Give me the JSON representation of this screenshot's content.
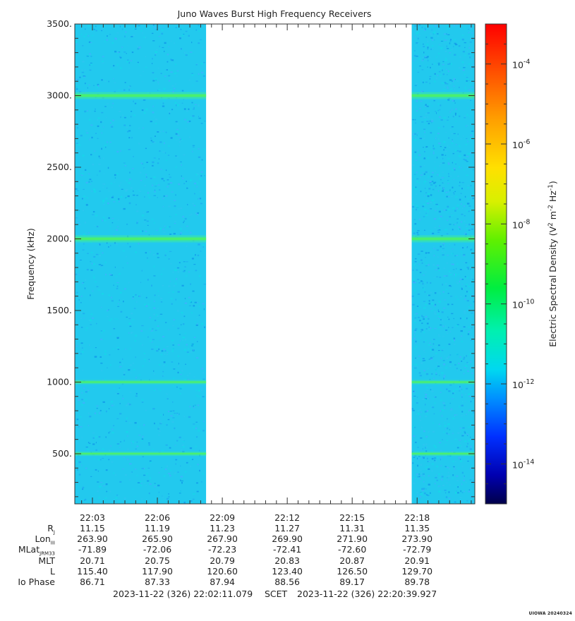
{
  "chart_data": {
    "type": "heatmap",
    "title": "Juno Waves Burst High Frequency Receivers",
    "ylabel": "Frequency (kHz)",
    "ylim": [
      150,
      3500
    ],
    "yticks": [
      "3500.",
      "3000.",
      "2500.",
      "2000.",
      "1500.",
      "1000.",
      "500."
    ],
    "ytick_values": [
      3500,
      3000,
      2500,
      2000,
      1500,
      1000,
      500
    ],
    "xticks": [
      "22:03",
      "22:06",
      "22:09",
      "22:12",
      "22:15",
      "22:18"
    ],
    "time_range": [
      "22:02:11.079",
      "22:20:39.927"
    ],
    "data_segments": [
      {
        "start": "22:02:11",
        "end": "22:08:15"
      },
      {
        "start": "22:17:45",
        "end": "22:20:39"
      }
    ],
    "emission_lines_khz": [
      3000,
      2000,
      1000,
      500
    ],
    "background_level": "10^-12",
    "colorbar": {
      "label": "Electric Spectral Density (V2 m-2 Hz-1)",
      "label_parts": {
        "base": "Electric Spectral Density (V",
        "exp1": "2",
        "mid": " m",
        "exp2": "-2",
        "mid2": " Hz",
        "exp3": "-1",
        "end": ")"
      },
      "scale": "log",
      "range_exponents": [
        -15,
        -3
      ],
      "tick_exponents": [
        -4,
        -6,
        -8,
        -10,
        -12,
        -14
      ],
      "colors": [
        "#00008b",
        "#0000ff",
        "#0080ff",
        "#00e6e6",
        "#00ff80",
        "#00ff00",
        "#b3ff00",
        "#ffff00",
        "#ffa500",
        "#ff4000",
        "#ff0000"
      ]
    }
  },
  "ephemeris": {
    "rows": [
      {
        "label": "Rj",
        "label_main": "R",
        "label_sub": "J",
        "values": [
          "11.15",
          "11.19",
          "11.23",
          "11.27",
          "11.31",
          "11.35"
        ]
      },
      {
        "label": "LonIII",
        "label_main": "Lon",
        "label_sub": "III",
        "values": [
          "263.90",
          "265.90",
          "267.90",
          "269.90",
          "271.90",
          "273.90"
        ]
      },
      {
        "label": "MLatJRM33",
        "label_main": "MLat",
        "label_sub": "JRM33",
        "values": [
          "-71.89",
          "-72.06",
          "-72.23",
          "-72.41",
          "-72.60",
          "-72.79"
        ]
      },
      {
        "label": "MLT",
        "label_main": "MLT",
        "label_sub": "",
        "values": [
          "20.71",
          "20.75",
          "20.79",
          "20.83",
          "20.87",
          "20.91"
        ]
      },
      {
        "label": "L",
        "label_main": "L",
        "label_sub": "",
        "values": [
          "115.40",
          "117.90",
          "120.60",
          "123.40",
          "126.50",
          "129.70"
        ]
      },
      {
        "label": "Io Phase",
        "label_main": "Io Phase",
        "label_sub": "",
        "values": [
          "86.71",
          "87.33",
          "87.94",
          "88.56",
          "89.17",
          "89.78"
        ]
      }
    ]
  },
  "footer": {
    "start": "2023-11-22 (326) 22:02:11.079",
    "mid": "SCET",
    "end": "2023-11-22 (326) 22:20:39.927",
    "credit": "UIOWA 20240324"
  }
}
